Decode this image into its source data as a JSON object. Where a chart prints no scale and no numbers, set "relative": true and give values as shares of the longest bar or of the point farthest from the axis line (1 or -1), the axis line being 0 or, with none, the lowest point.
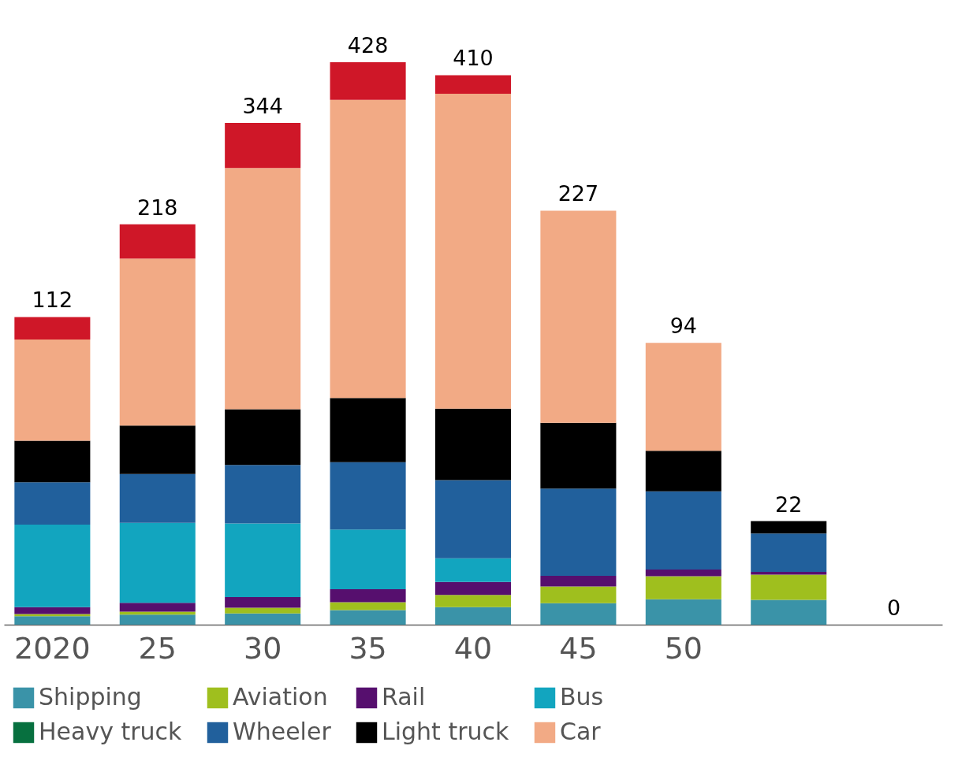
{
  "chart_data": {
    "type": "bar",
    "stacked": true,
    "relative": true,
    "legend": "bottom",
    "grid": false,
    "categories": [
      "2020",
      "25",
      "30",
      "35",
      "40",
      "45",
      "50",
      null,
      null
    ],
    "annotations": [
      {
        "text": "112",
        "x": "2020",
        "y": 0.547
      },
      {
        "text": "218",
        "x": "25",
        "y": 0.712
      },
      {
        "text": "344",
        "x": "30",
        "y": 0.892
      },
      {
        "text": "428",
        "x": "35",
        "y": 1.0
      },
      {
        "text": "410",
        "x": "40",
        "y": 0.977
      },
      {
        "text": "227",
        "x": "45",
        "y": 0.736
      },
      {
        "text": "94",
        "x": "50",
        "y": 0.501
      },
      {
        "text": "22",
        "y": 0.184
      },
      {
        "text": "0",
        "y": 0
      }
    ],
    "series": [
      {
        "name": "Shipping",
        "color": "#3a93a8",
        "values": [
          0.015,
          0.018,
          0.02,
          0.026,
          0.031,
          0.038,
          0.045,
          0.044,
          0
        ]
      },
      {
        "name": "Aviation",
        "color": "#9fbf1e",
        "values": [
          0.004,
          0.005,
          0.01,
          0.014,
          0.022,
          0.03,
          0.041,
          0.045,
          0
        ]
      },
      {
        "name": "Rail",
        "color": "#560f6e",
        "values": [
          0.012,
          0.016,
          0.019,
          0.023,
          0.023,
          0.019,
          0.012,
          0.005,
          0
        ]
      },
      {
        "name": "Bus",
        "color": "#12a5bf",
        "values": [
          0.147,
          0.142,
          0.131,
          0.106,
          0.042,
          0,
          0,
          0,
          0
        ]
      },
      {
        "name": "Heavy truck",
        "color": "#07703f",
        "values": [
          0,
          0,
          0,
          0,
          0,
          0,
          0,
          0,
          0
        ]
      },
      {
        "name": "Wheeler",
        "color": "#21609c",
        "values": [
          0.075,
          0.087,
          0.104,
          0.12,
          0.139,
          0.155,
          0.139,
          0.068,
          0
        ]
      },
      {
        "name": "Light truck",
        "color": "#000000",
        "values": [
          0.074,
          0.086,
          0.099,
          0.114,
          0.127,
          0.117,
          0.072,
          0.022,
          0
        ]
      },
      {
        "name": "Car",
        "color": "#f2aa85",
        "values": [
          0.18,
          0.297,
          0.429,
          0.53,
          0.56,
          0.377,
          0.192,
          0,
          0
        ]
      },
      {
        "color": "#cf1728",
        "values": [
          0.04,
          0.061,
          0.08,
          0.067,
          0.033,
          0,
          0,
          0,
          0
        ]
      }
    ]
  }
}
